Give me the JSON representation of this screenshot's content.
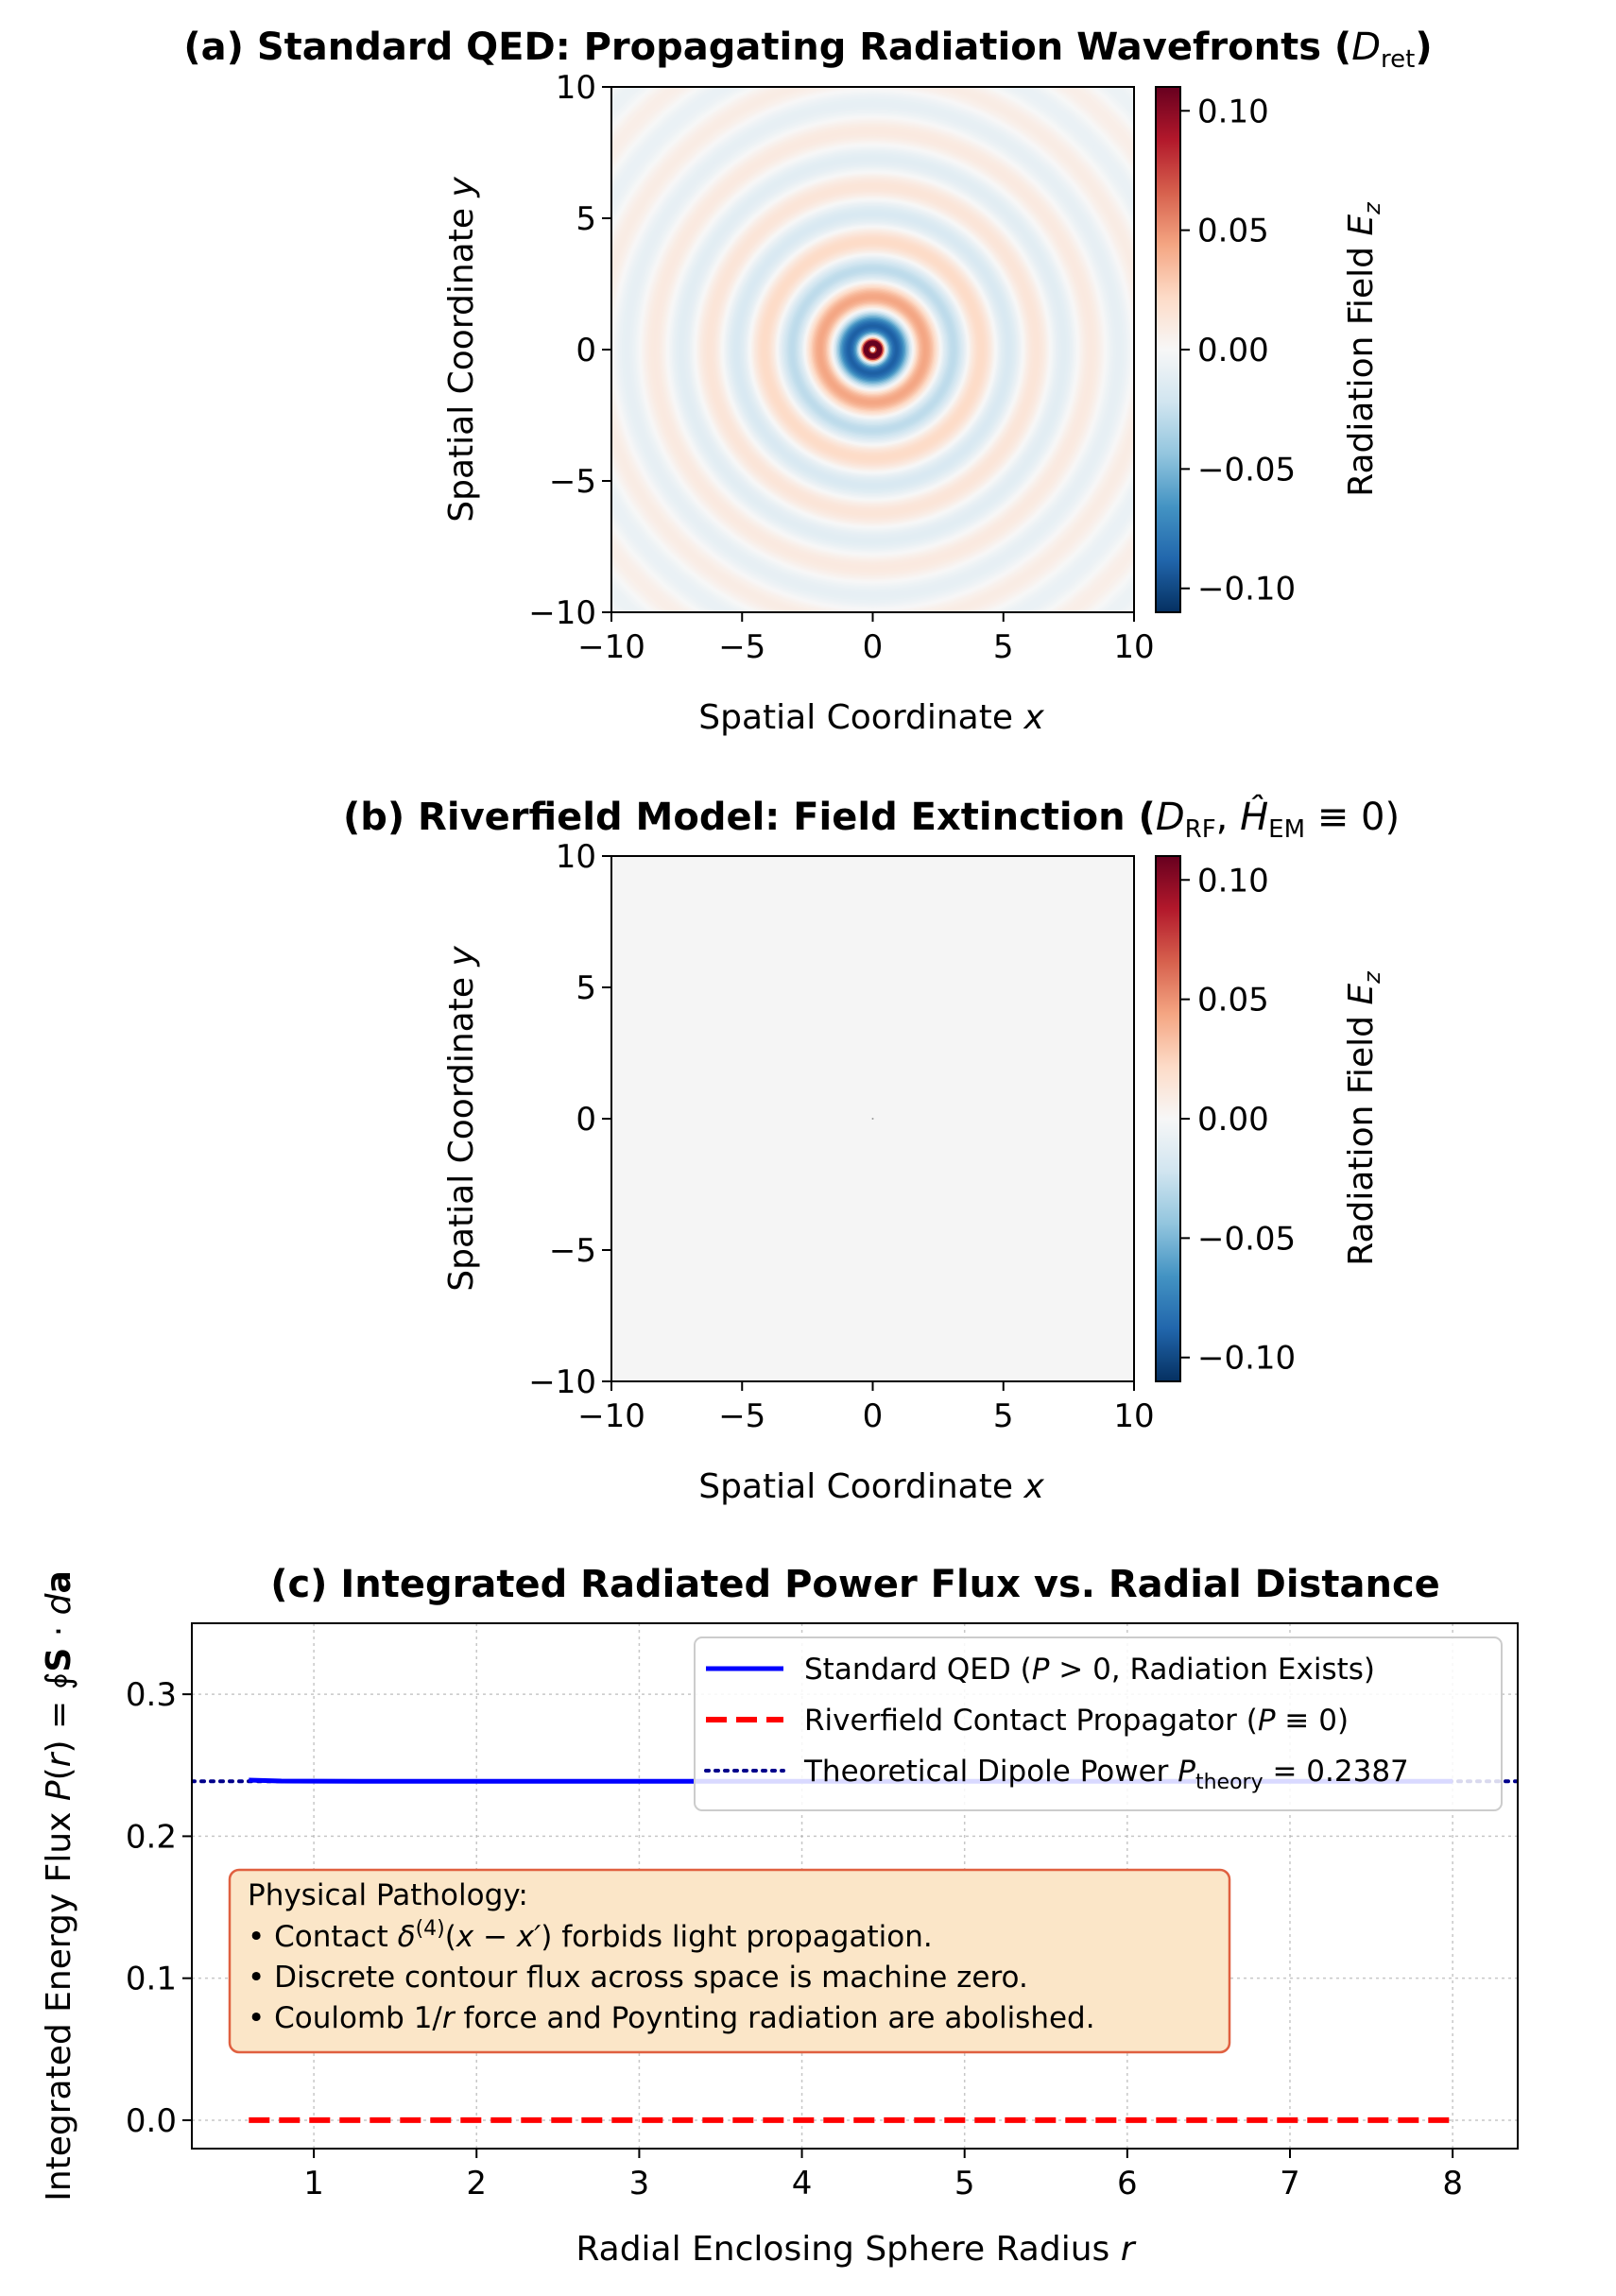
{
  "chart_data": [
    {
      "type": "heatmap",
      "title": "(a) Standard QED: Propagating Radiation Wavefronts (D_ret)",
      "title_parts": [
        "(a) Standard QED: Propagating Radiation Wavefronts (",
        "D",
        "ret",
        ")"
      ],
      "xlabel": "Spatial Coordinate x",
      "xlabel_parts": [
        "Spatial Coordinate ",
        "x"
      ],
      "ylabel": "Spatial Coordinate y",
      "ylabel_parts": [
        "Spatial Coordinate ",
        "y"
      ],
      "xlim": [
        -10,
        10
      ],
      "ylim": [
        -10,
        10
      ],
      "xticks": [
        "−10",
        "−5",
        "0",
        "5",
        "10"
      ],
      "yticks": [
        "−10",
        "−5",
        "0",
        "5",
        "10"
      ],
      "colorbar": {
        "label": "Radiation Field E_z",
        "label_parts": [
          "Radiation Field ",
          "E",
          "z"
        ],
        "range": [
          -0.11,
          0.11
        ],
        "ticks": [
          "−0.10",
          "−0.05",
          "0.00",
          "0.05",
          "0.10"
        ],
        "colormap": "RdBu_r"
      },
      "field": "concentric radial wavefronts around origin, amplitude decaying ~1/r, wavelength ~2.1",
      "wavelength": 2.1,
      "amplitude_scale": 0.1
    },
    {
      "type": "heatmap",
      "title": "(b) Riverfield Model: Field Extinction (D_RF, Ĥ_EM ≡ 0)",
      "title_parts": [
        "(b) Riverfield Model: Field Extinction (",
        "D",
        "RF",
        ", ",
        "Ĥ",
        "EM",
        " ≡ 0)"
      ],
      "xlabel": "Spatial Coordinate x",
      "xlabel_parts": [
        "Spatial Coordinate ",
        "x"
      ],
      "ylabel": "Spatial Coordinate y",
      "ylabel_parts": [
        "Spatial Coordinate ",
        "y"
      ],
      "xlim": [
        -10,
        10
      ],
      "ylim": [
        -10,
        10
      ],
      "xticks": [
        "−10",
        "−5",
        "0",
        "5",
        "10"
      ],
      "yticks": [
        "−10",
        "−5",
        "0",
        "5",
        "10"
      ],
      "colorbar": {
        "label": "Radiation Field E_z",
        "label_parts": [
          "Radiation Field ",
          "E",
          "z"
        ],
        "range": [
          -0.11,
          0.11
        ],
        "ticks": [
          "−0.10",
          "−0.05",
          "0.00",
          "0.05",
          "0.10"
        ],
        "colormap": "RdBu_r"
      },
      "field": "uniformly zero everywhere",
      "value": 0
    },
    {
      "type": "line",
      "title": "(c) Integrated Radiated Power Flux vs. Radial Distance",
      "xlabel": "Radial Enclosing Sphere Radius r",
      "xlabel_parts": [
        "Radial Enclosing Sphere Radius ",
        "r"
      ],
      "ylabel": "Integrated Energy Flux P(r) = ∮S · da",
      "ylabel_parts": [
        "Integrated Energy Flux ",
        "P",
        "(",
        "r",
        ") = ∮",
        "S",
        " · ",
        "d",
        "a"
      ],
      "xlim": [
        0.25,
        8.4
      ],
      "ylim": [
        -0.02,
        0.35
      ],
      "xticks": [
        1,
        2,
        3,
        4,
        5,
        6,
        7,
        8
      ],
      "yticks": [
        0.0,
        0.1,
        0.2,
        0.3
      ],
      "ytick_labels": [
        "0.0",
        "0.1",
        "0.2",
        "0.3"
      ],
      "grid": true,
      "legend_position": "upper right",
      "series": [
        {
          "name": "Standard QED (P > 0, Radiation Exists)",
          "name_parts": [
            "Standard QED (",
            "P",
            " > 0, Radiation Exists)"
          ],
          "style": "solid",
          "color": "#0000ff",
          "x": [
            0.6,
            0.8,
            1.0,
            1.5,
            2.0,
            3.0,
            4.0,
            5.0,
            6.0,
            7.0,
            8.0
          ],
          "y": [
            0.2395,
            0.2389,
            0.2388,
            0.2387,
            0.2387,
            0.2387,
            0.2387,
            0.2387,
            0.2387,
            0.2387,
            0.2387
          ]
        },
        {
          "name": "Riverfield Contact Propagator (P ≡ 0)",
          "name_parts": [
            "Riverfield Contact Propagator (",
            "P",
            " ≡ 0)"
          ],
          "style": "dashed",
          "color": "#ff0000",
          "x": [
            0.6,
            8.0
          ],
          "y": [
            0.0,
            0.0
          ]
        },
        {
          "name": "Theoretical Dipole Power P_theory = 0.2387",
          "name_parts": [
            "Theoretical Dipole Power ",
            "P",
            "theory",
            " = 0.2387"
          ],
          "style": "dotted",
          "color": "#00008b",
          "y_const": 0.2387
        }
      ],
      "annotation": {
        "lines": [
          [
            "Physical Pathology:"
          ],
          [
            "• Contact ",
            "δ",
            "(4)",
            "(",
            "x",
            " − ",
            "x′",
            ") forbids light propagation."
          ],
          [
            "• Discrete contour flux across space is machine zero."
          ],
          [
            "• Coulomb 1/",
            "r",
            " force and Poynting radiation are abolished."
          ]
        ],
        "background": "#fbe6c8",
        "border": "#e06040"
      }
    }
  ],
  "colors": {
    "qed_line": "#0000ff",
    "rf_line": "#ff0000",
    "theory_line": "#00008b",
    "empty_field": "#f5f5f5"
  }
}
